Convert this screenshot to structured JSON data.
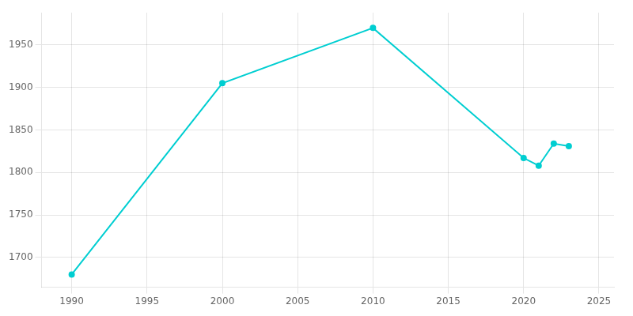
{
  "chart_data": {
    "type": "line",
    "x": [
      1990,
      2000,
      2010,
      2020,
      2021,
      2022,
      2023
    ],
    "values": [
      1680,
      1905,
      1970,
      1817,
      1808,
      1834,
      1831
    ],
    "color": "#00CED1",
    "marker": "circle",
    "xlim": [
      1988,
      2026
    ],
    "ylim": [
      1665,
      1988
    ],
    "xticks": [
      1990,
      1995,
      2000,
      2005,
      2010,
      2015,
      2020,
      2025
    ],
    "yticks": [
      1700,
      1750,
      1800,
      1850,
      1900,
      1950
    ],
    "grid": true
  }
}
